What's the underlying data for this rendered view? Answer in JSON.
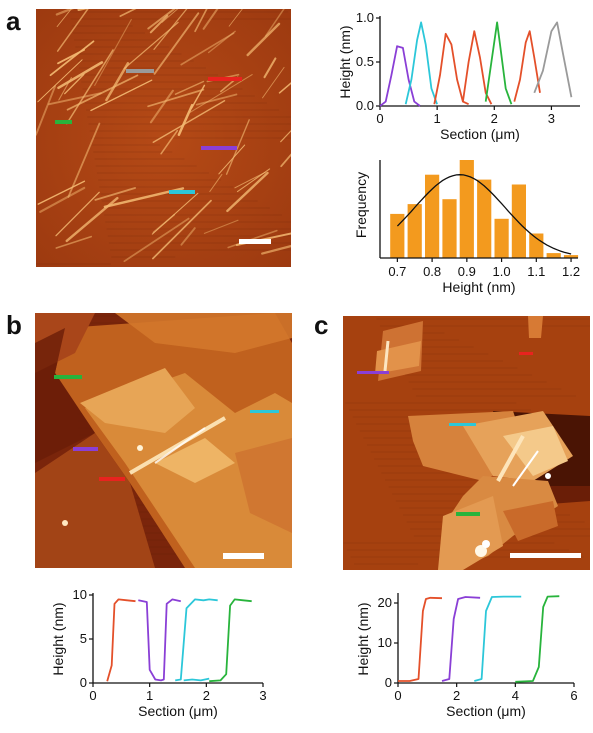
{
  "panels": {
    "a": "a",
    "b": "b",
    "c": "c"
  },
  "colors": {
    "orange": "#e4502a",
    "purple": "#8a3fd6",
    "cyan": "#2cc7d9",
    "green": "#28b43c",
    "gray": "#9a9a9a",
    "red": "#e8231f",
    "bar": "#f39a1e",
    "afm_dark": "#6e1f08",
    "afm_mid": "#b14a14",
    "afm_light": "#f2c074"
  },
  "chart_data": [
    {
      "id": "a_profile",
      "type": "line",
      "xlabel": "Section (μm)",
      "ylabel": "Height (nm)",
      "xlim": [
        0,
        3.5
      ],
      "ylim": [
        0,
        1.0
      ],
      "xticks": [
        "0",
        "1",
        "2",
        "3"
      ],
      "yticks": [
        "0.0",
        "0.5",
        "1.0"
      ],
      "series": [
        {
          "color": "purple",
          "x": [
            0.0,
            0.1,
            0.2,
            0.3,
            0.4,
            0.5,
            0.6,
            0.7
          ],
          "y": [
            0.0,
            0.05,
            0.35,
            0.68,
            0.66,
            0.3,
            0.05,
            0.0
          ]
        },
        {
          "color": "cyan",
          "x": [
            0.45,
            0.55,
            0.65,
            0.72,
            0.8,
            0.9,
            1.0
          ],
          "y": [
            0.02,
            0.3,
            0.75,
            0.95,
            0.7,
            0.2,
            0.02
          ]
        },
        {
          "color": "orange",
          "x": [
            0.95,
            1.05,
            1.15,
            1.25,
            1.35,
            1.45,
            1.55
          ],
          "y": [
            0.02,
            0.35,
            0.82,
            0.7,
            0.3,
            0.05,
            0.02
          ]
        },
        {
          "color": "orange",
          "x": [
            1.45,
            1.55,
            1.65,
            1.75,
            1.85,
            1.95
          ],
          "y": [
            0.05,
            0.5,
            0.85,
            0.55,
            0.15,
            0.02
          ]
        },
        {
          "color": "green",
          "x": [
            1.85,
            1.95,
            2.05,
            2.1,
            2.2,
            2.3
          ],
          "y": [
            0.05,
            0.5,
            0.95,
            0.7,
            0.2,
            0.02
          ]
        },
        {
          "color": "orange",
          "x": [
            2.35,
            2.45,
            2.55,
            2.62,
            2.7,
            2.8
          ],
          "y": [
            0.05,
            0.3,
            0.72,
            0.85,
            0.55,
            0.15
          ]
        },
        {
          "color": "gray",
          "x": [
            2.7,
            2.85,
            3.0,
            3.1,
            3.2,
            3.35
          ],
          "y": [
            0.15,
            0.4,
            0.85,
            0.95,
            0.6,
            0.1
          ]
        }
      ]
    },
    {
      "id": "a_hist",
      "type": "bar",
      "xlabel": "Height (nm)",
      "ylabel": "Frequency",
      "xlim": [
        0.65,
        1.22
      ],
      "ylim": [
        0,
        10
      ],
      "xticks": [
        "0.7",
        "0.8",
        "0.9",
        "1.0",
        "1.1",
        "1.2"
      ],
      "bins": [
        0.7,
        0.75,
        0.8,
        0.85,
        0.9,
        0.95,
        1.0,
        1.05,
        1.1,
        1.15,
        1.2
      ],
      "values": [
        4.5,
        5.5,
        8.5,
        6.0,
        10.0,
        8.0,
        4.0,
        7.5,
        2.5,
        0.5,
        0.3
      ],
      "fit_curve": "gaussian",
      "fit_mean": 0.88,
      "fit_sd": 0.13,
      "fit_peak": 8.5
    },
    {
      "id": "b_profile",
      "type": "line",
      "xlabel": "Section (μm)",
      "ylabel": "Height (nm)",
      "xlim": [
        0,
        3
      ],
      "ylim": [
        0,
        10
      ],
      "xticks": [
        "0",
        "1",
        "2",
        "3"
      ],
      "yticks": [
        "0",
        "5",
        "10"
      ],
      "series": [
        {
          "color": "orange",
          "x": [
            0.25,
            0.33,
            0.38,
            0.45,
            0.6,
            0.75
          ],
          "y": [
            0.2,
            2.0,
            9.0,
            9.5,
            9.4,
            9.3
          ]
        },
        {
          "color": "purple",
          "x": [
            0.8,
            0.95,
            1.0,
            1.1,
            1.2,
            1.25,
            1.3,
            1.4,
            1.55
          ],
          "y": [
            9.4,
            9.2,
            1.5,
            0.4,
            0.3,
            0.4,
            9.0,
            9.5,
            9.3
          ]
        },
        {
          "color": "cyan",
          "x": [
            1.45,
            1.55,
            1.65,
            1.8,
            1.95,
            2.05,
            2.2
          ],
          "y": [
            0.3,
            0.4,
            8.5,
            9.5,
            9.4,
            9.5,
            9.4
          ]
        },
        {
          "color": "cyan",
          "x": [
            1.6,
            1.75,
            1.9,
            2.05
          ],
          "y": [
            0.3,
            0.4,
            0.3,
            0.5
          ]
        },
        {
          "color": "green",
          "x": [
            2.05,
            2.25,
            2.35,
            2.42,
            2.5,
            2.65,
            2.8
          ],
          "y": [
            0.2,
            0.3,
            1.0,
            8.8,
            9.5,
            9.4,
            9.3
          ]
        }
      ]
    },
    {
      "id": "c_profile",
      "type": "line",
      "xlabel": "Section (μm)",
      "ylabel": "Height (nm)",
      "xlim": [
        0,
        6
      ],
      "ylim": [
        0,
        22
      ],
      "xticks": [
        "0",
        "2",
        "4",
        "6"
      ],
      "yticks": [
        "0",
        "10",
        "20"
      ],
      "series": [
        {
          "color": "orange",
          "x": [
            0.0,
            0.4,
            0.7,
            0.85,
            0.95,
            1.1,
            1.5
          ],
          "y": [
            0.5,
            0.5,
            1.0,
            18.0,
            21.0,
            21.3,
            21.2
          ]
        },
        {
          "color": "purple",
          "x": [
            1.5,
            1.75,
            1.9,
            2.05,
            2.3,
            2.8
          ],
          "y": [
            0.5,
            1.0,
            16.0,
            21.0,
            21.5,
            21.3
          ]
        },
        {
          "color": "cyan",
          "x": [
            2.6,
            2.85,
            3.0,
            3.2,
            3.6,
            4.2
          ],
          "y": [
            0.5,
            1.0,
            18.0,
            21.5,
            21.6,
            21.6
          ]
        },
        {
          "color": "green",
          "x": [
            4.0,
            4.6,
            4.8,
            4.95,
            5.1,
            5.5
          ],
          "y": [
            0.3,
            0.5,
            4.0,
            19.0,
            21.6,
            21.7
          ]
        }
      ]
    }
  ]
}
